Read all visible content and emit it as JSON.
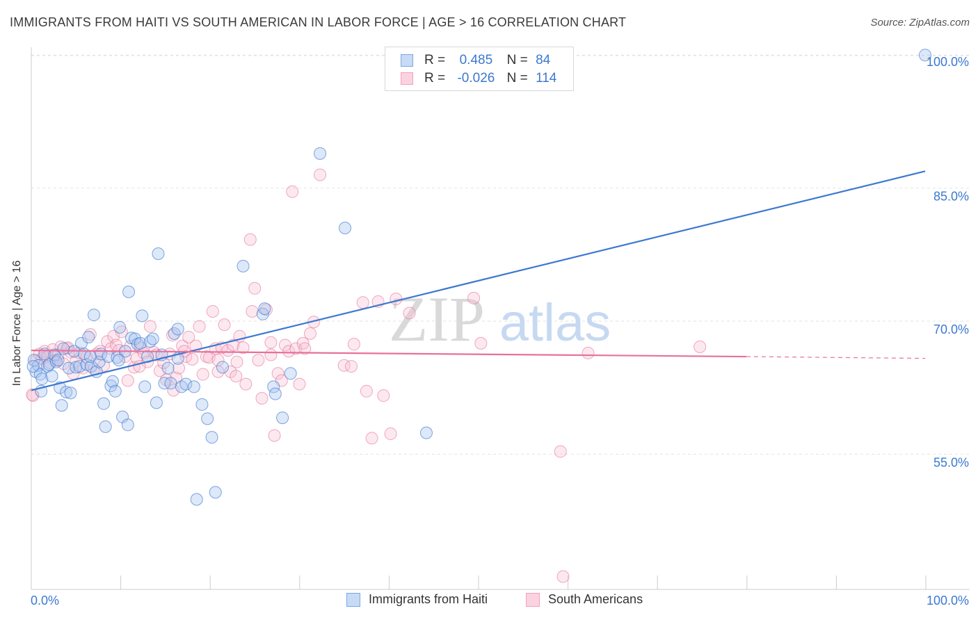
{
  "title": "IMMIGRANTS FROM HAITI VS SOUTH AMERICAN IN LABOR FORCE | AGE > 16 CORRELATION CHART",
  "source": "Source: ZipAtlas.com",
  "watermark": {
    "zip": "ZIP",
    "atlas": "atlas"
  },
  "legend_top": {
    "rows": [
      {
        "r_label": "R =",
        "r_value": "0.485",
        "n_label": "N =",
        "n_value": "84",
        "color": "#7aa6e6"
      },
      {
        "r_label": "R =",
        "r_value": "-0.026",
        "n_label": "N =",
        "n_value": "114",
        "color": "#f2a0bb"
      }
    ]
  },
  "legend_bottom": [
    {
      "label": "Immigrants from Haiti",
      "color": "#7aa6e6"
    },
    {
      "label": "South Americans",
      "color": "#f2a0bb"
    }
  ],
  "chart_data": {
    "type": "scatter",
    "xlabel": "",
    "ylabel": "In Labor Force | Age > 16",
    "x_tick_labels": [
      "0.0%",
      "100.0%"
    ],
    "y_tick_labels": [
      "55.0%",
      "70.0%",
      "85.0%",
      "100.0%"
    ],
    "xlim": [
      0,
      100
    ],
    "ylim": [
      41,
      100
    ],
    "grid": true,
    "colors": {
      "haiti": "#3b78d0",
      "haiti_fill": "#a9c6f0",
      "south": "#e8709a",
      "south_fill": "#f7bfd1",
      "axis_text": "#3b78d0"
    },
    "series": [
      {
        "name": "Immigrants from Haiti",
        "trend": {
          "x": [
            0,
            100
          ],
          "y": [
            62.2,
            86.9
          ]
        },
        "points": [
          [
            0.3,
            65.6
          ],
          [
            0.5,
            64.3
          ],
          [
            0.8,
            65.0
          ],
          [
            1.0,
            64.0
          ],
          [
            1.2,
            63.5
          ],
          [
            1.5,
            66.3
          ],
          [
            1.8,
            64.9
          ],
          [
            2.0,
            65.1
          ],
          [
            2.3,
            63.8
          ],
          [
            2.6,
            66.2
          ],
          [
            2.8,
            65.4
          ],
          [
            3.0,
            65.6
          ],
          [
            3.2,
            62.5
          ],
          [
            3.4,
            60.5
          ],
          [
            3.6,
            66.9
          ],
          [
            3.9,
            62.0
          ],
          [
            4.2,
            64.7
          ],
          [
            4.4,
            61.9
          ],
          [
            4.8,
            66.6
          ],
          [
            5.0,
            64.8
          ],
          [
            5.4,
            64.9
          ],
          [
            5.6,
            67.5
          ],
          [
            5.9,
            66.3
          ],
          [
            6.2,
            65.1
          ],
          [
            6.4,
            68.2
          ],
          [
            6.7,
            64.9
          ],
          [
            7.0,
            70.7
          ],
          [
            7.3,
            64.3
          ],
          [
            7.6,
            65.4
          ],
          [
            7.8,
            66.3
          ],
          [
            8.1,
            60.7
          ],
          [
            8.3,
            58.1
          ],
          [
            8.6,
            66.0
          ],
          [
            8.9,
            62.7
          ],
          [
            9.1,
            63.2
          ],
          [
            9.4,
            62.1
          ],
          [
            9.6,
            65.9
          ],
          [
            9.9,
            69.3
          ],
          [
            10.2,
            59.2
          ],
          [
            10.5,
            66.6
          ],
          [
            10.8,
            58.3
          ],
          [
            10.9,
            73.3
          ],
          [
            11.2,
            68.1
          ],
          [
            11.6,
            68.0
          ],
          [
            11.9,
            67.4
          ],
          [
            12.2,
            67.5
          ],
          [
            12.4,
            70.6
          ],
          [
            12.7,
            62.6
          ],
          [
            13.0,
            66.0
          ],
          [
            13.3,
            67.7
          ],
          [
            13.6,
            68.0
          ],
          [
            14.0,
            60.8
          ],
          [
            14.2,
            77.6
          ],
          [
            14.6,
            66.2
          ],
          [
            14.9,
            63.0
          ],
          [
            15.3,
            64.7
          ],
          [
            15.6,
            63.0
          ],
          [
            16.0,
            68.6
          ],
          [
            16.4,
            69.1
          ],
          [
            16.8,
            62.6
          ],
          [
            17.3,
            62.9
          ],
          [
            18.2,
            62.6
          ],
          [
            18.5,
            49.9
          ],
          [
            19.1,
            60.6
          ],
          [
            19.7,
            59.0
          ],
          [
            20.2,
            56.9
          ],
          [
            20.6,
            50.7
          ],
          [
            21.4,
            64.8
          ],
          [
            23.7,
            76.2
          ],
          [
            25.9,
            70.8
          ],
          [
            26.1,
            71.4
          ],
          [
            27.1,
            62.6
          ],
          [
            27.3,
            61.8
          ],
          [
            28.1,
            59.1
          ],
          [
            29.0,
            64.1
          ],
          [
            32.3,
            88.9
          ],
          [
            35.1,
            80.5
          ],
          [
            44.2,
            57.4
          ],
          [
            100.0,
            100.0
          ],
          [
            0.2,
            64.9
          ],
          [
            1.1,
            62.1
          ],
          [
            6.6,
            66.0
          ],
          [
            9.8,
            65.6
          ],
          [
            16.4,
            65.8
          ]
        ]
      },
      {
        "name": "South Americans",
        "trend": {
          "x": [
            0,
            80
          ],
          "y": [
            66.7,
            66.0
          ]
        },
        "trend_dashed": {
          "x": [
            80,
            100
          ],
          "y": [
            66.0,
            65.8
          ]
        },
        "points": [
          [
            0.2,
            61.6
          ],
          [
            0.5,
            65.5
          ],
          [
            0.9,
            66.3
          ],
          [
            1.2,
            65.8
          ],
          [
            1.5,
            66.6
          ],
          [
            1.8,
            66.0
          ],
          [
            2.1,
            65.3
          ],
          [
            2.4,
            66.8
          ],
          [
            2.7,
            65.6
          ],
          [
            3.0,
            66.2
          ],
          [
            3.3,
            67.1
          ],
          [
            3.6,
            65.2
          ],
          [
            4.0,
            66.9
          ],
          [
            4.4,
            66.5
          ],
          [
            4.7,
            64.1
          ],
          [
            5.0,
            65.5
          ],
          [
            5.4,
            66.4
          ],
          [
            5.8,
            64.7
          ],
          [
            6.2,
            66.0
          ],
          [
            6.6,
            68.5
          ],
          [
            7.0,
            64.6
          ],
          [
            7.3,
            66.3
          ],
          [
            7.7,
            66.6
          ],
          [
            8.1,
            65.0
          ],
          [
            8.5,
            67.7
          ],
          [
            8.9,
            66.9
          ],
          [
            9.2,
            68.3
          ],
          [
            9.5,
            67.3
          ],
          [
            9.8,
            66.7
          ],
          [
            10.1,
            68.8
          ],
          [
            10.5,
            66.0
          ],
          [
            10.8,
            63.3
          ],
          [
            11.1,
            67.2
          ],
          [
            11.5,
            64.8
          ],
          [
            11.8,
            65.8
          ],
          [
            12.2,
            67.0
          ],
          [
            12.6,
            66.4
          ],
          [
            13.0,
            65.4
          ],
          [
            13.3,
            69.4
          ],
          [
            13.7,
            66.5
          ],
          [
            14.0,
            66.2
          ],
          [
            14.4,
            64.4
          ],
          [
            14.8,
            65.3
          ],
          [
            15.1,
            63.4
          ],
          [
            15.5,
            66.3
          ],
          [
            15.8,
            68.4
          ],
          [
            16.2,
            63.6
          ],
          [
            16.5,
            64.7
          ],
          [
            16.9,
            67.2
          ],
          [
            17.3,
            66.0
          ],
          [
            17.6,
            68.2
          ],
          [
            18.0,
            65.7
          ],
          [
            18.4,
            67.2
          ],
          [
            18.8,
            69.4
          ],
          [
            19.2,
            64.0
          ],
          [
            19.6,
            66.0
          ],
          [
            19.9,
            65.9
          ],
          [
            20.3,
            71.1
          ],
          [
            20.6,
            66.9
          ],
          [
            20.9,
            65.6
          ],
          [
            21.3,
            67.0
          ],
          [
            21.6,
            69.6
          ],
          [
            22.0,
            66.7
          ],
          [
            22.3,
            64.3
          ],
          [
            22.6,
            67.3
          ],
          [
            23.0,
            65.4
          ],
          [
            23.3,
            68.3
          ],
          [
            23.7,
            67.0
          ],
          [
            24.0,
            62.9
          ],
          [
            24.5,
            79.2
          ],
          [
            24.7,
            71.1
          ],
          [
            25.0,
            73.7
          ],
          [
            25.4,
            65.6
          ],
          [
            25.8,
            61.3
          ],
          [
            26.3,
            71.3
          ],
          [
            26.8,
            67.6
          ],
          [
            27.2,
            57.1
          ],
          [
            27.6,
            64.1
          ],
          [
            28.0,
            63.3
          ],
          [
            28.4,
            67.3
          ],
          [
            28.8,
            66.6
          ],
          [
            29.2,
            84.6
          ],
          [
            29.6,
            66.9
          ],
          [
            30.0,
            62.9
          ],
          [
            30.4,
            67.5
          ],
          [
            31.2,
            68.6
          ],
          [
            31.6,
            69.9
          ],
          [
            32.3,
            86.5
          ],
          [
            35.0,
            65.0
          ],
          [
            36.1,
            67.4
          ],
          [
            37.1,
            72.1
          ],
          [
            38.1,
            56.8
          ],
          [
            38.8,
            72.2
          ],
          [
            40.2,
            57.3
          ],
          [
            40.8,
            72.5
          ],
          [
            42.3,
            70.9
          ],
          [
            49.5,
            72.6
          ],
          [
            50.3,
            67.5
          ],
          [
            59.2,
            55.3
          ],
          [
            62.3,
            66.4
          ],
          [
            74.8,
            67.1
          ],
          [
            0.1,
            61.7
          ],
          [
            4.1,
            67.0
          ],
          [
            12.1,
            64.9
          ],
          [
            17.1,
            66.6
          ],
          [
            22.9,
            63.8
          ],
          [
            26.8,
            66.2
          ],
          [
            30.6,
            66.9
          ],
          [
            35.8,
            64.9
          ],
          [
            37.5,
            62.1
          ],
          [
            39.4,
            61.6
          ],
          [
            59.5,
            41.2
          ],
          [
            15.9,
            62.2
          ],
          [
            20.9,
            64.3
          ]
        ]
      }
    ]
  }
}
